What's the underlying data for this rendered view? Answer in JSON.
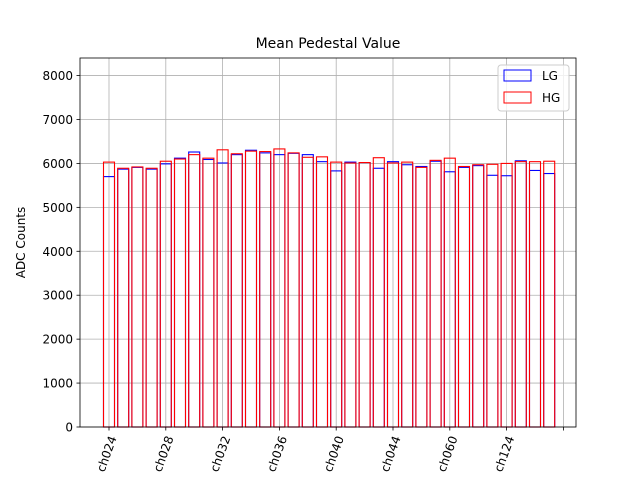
{
  "chart_data": {
    "type": "bar",
    "title": "Mean Pedestal Value",
    "xlabel": "",
    "ylabel": "ADC Counts",
    "ylim": [
      0,
      8400
    ],
    "yticks": [
      0,
      1000,
      2000,
      3000,
      4000,
      5000,
      6000,
      7000,
      8000
    ],
    "xticklabels": [
      "ch024",
      "ch028",
      "ch032",
      "ch036",
      "ch040",
      "ch044",
      "ch060",
      "ch124",
      ""
    ],
    "grid": true,
    "legend_position": "top-right",
    "series": [
      {
        "name": "LG",
        "color": "#0000ff",
        "values": [
          5700,
          5870,
          5910,
          5870,
          5990,
          6120,
          6260,
          6090,
          6010,
          6200,
          6300,
          6240,
          6200,
          6230,
          6200,
          6040,
          5830,
          6030,
          6020,
          5890,
          6040,
          5970,
          5930,
          6050,
          5810,
          5910,
          5950,
          5730,
          5720,
          6060,
          5840,
          5770
        ]
      },
      {
        "name": "HG",
        "color": "#ff0000",
        "values": [
          6030,
          5890,
          5920,
          5890,
          6050,
          6100,
          6200,
          6120,
          6310,
          6220,
          6280,
          6270,
          6330,
          6240,
          6140,
          6150,
          6030,
          6010,
          6020,
          6130,
          6010,
          6030,
          5910,
          6070,
          6120,
          5930,
          5970,
          5980,
          6000,
          6040,
          6040,
          6050
        ]
      }
    ]
  }
}
